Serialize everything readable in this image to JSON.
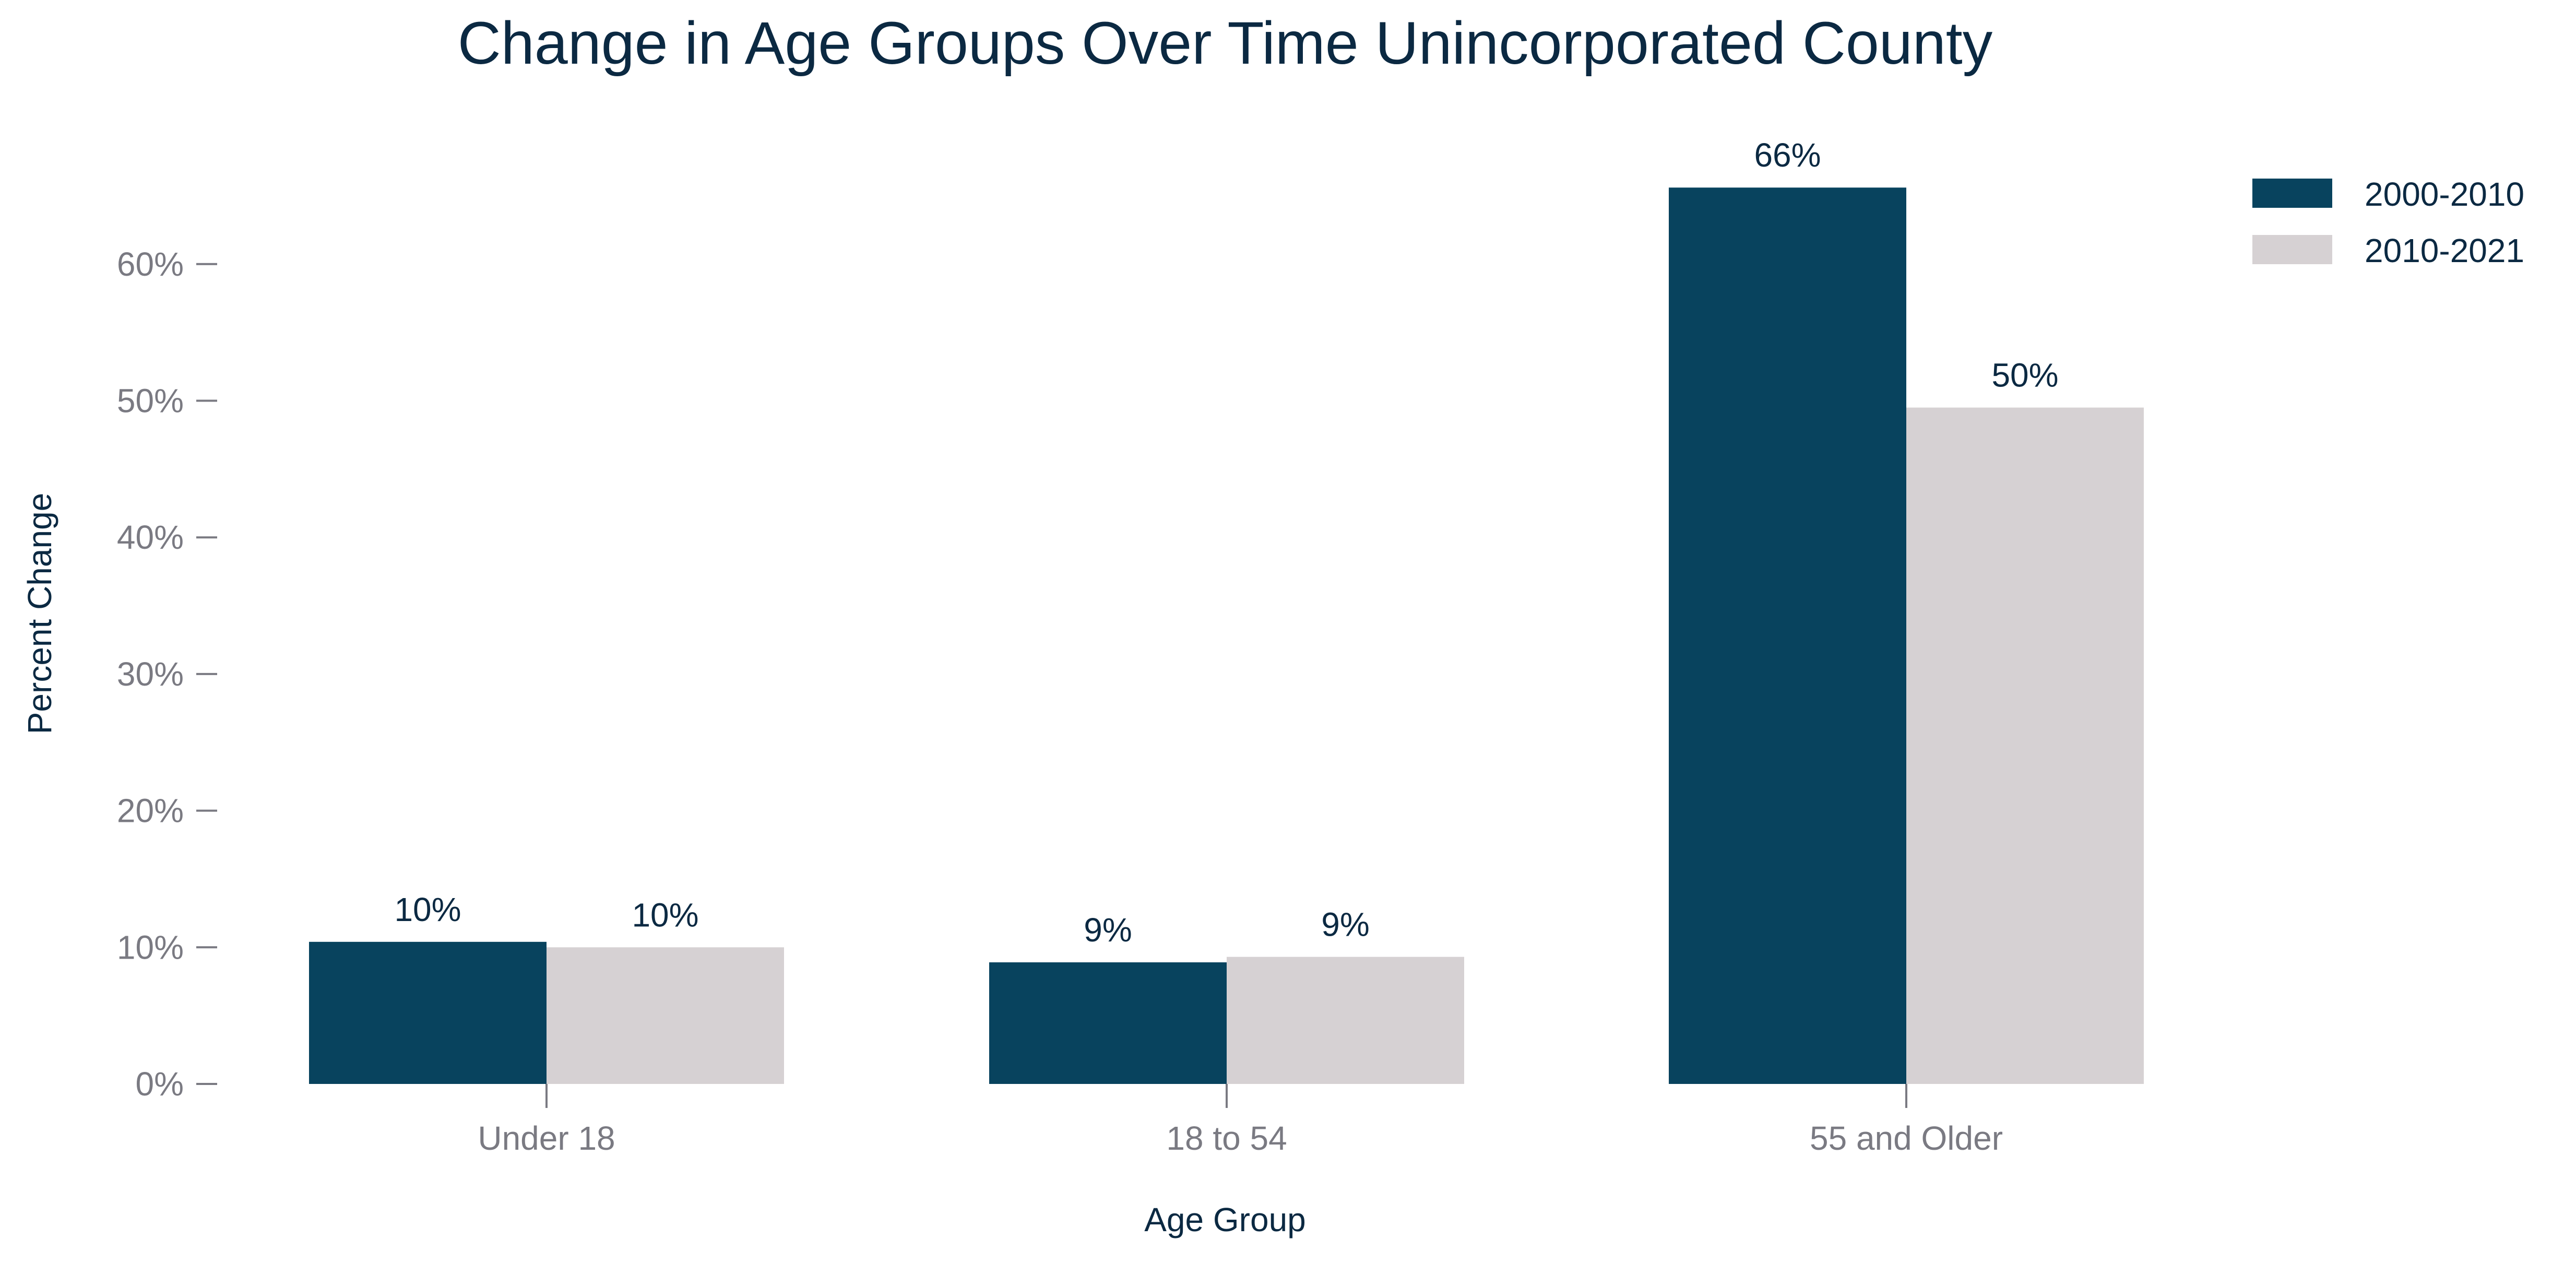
{
  "chart_data": {
    "type": "bar",
    "title": "Change in Age Groups Over Time Unincorporated County",
    "xlabel": "Age Group",
    "ylabel": "Percent Change",
    "categories": [
      "Under 18",
      "18 to 54",
      "55 and Older"
    ],
    "series": [
      {
        "name": "2000-2010",
        "values": [
          10.4,
          8.9,
          65.6
        ],
        "labels": [
          "10%",
          "9%",
          "66%"
        ],
        "color": "#08435e"
      },
      {
        "name": "2010-2021",
        "values": [
          10.0,
          9.3,
          49.5
        ],
        "labels": [
          "10%",
          "9%",
          "50%"
        ],
        "color": "#d6d1d3"
      }
    ],
    "ylim": [
      0,
      70
    ],
    "yticks": [
      0,
      10,
      20,
      30,
      40,
      50,
      60
    ],
    "ytick_labels": [
      "0%",
      "10%",
      "20%",
      "30%",
      "40%",
      "50%",
      "60%"
    ],
    "legend": "top-right",
    "grid": false,
    "colors": {
      "title": "#0b2942",
      "axis_label": "#0b2942",
      "data_label": "#0b2942",
      "tick_label": "#7a7a82",
      "tick_mark": "#7a7a82",
      "legend_text": "#0b2942"
    }
  }
}
